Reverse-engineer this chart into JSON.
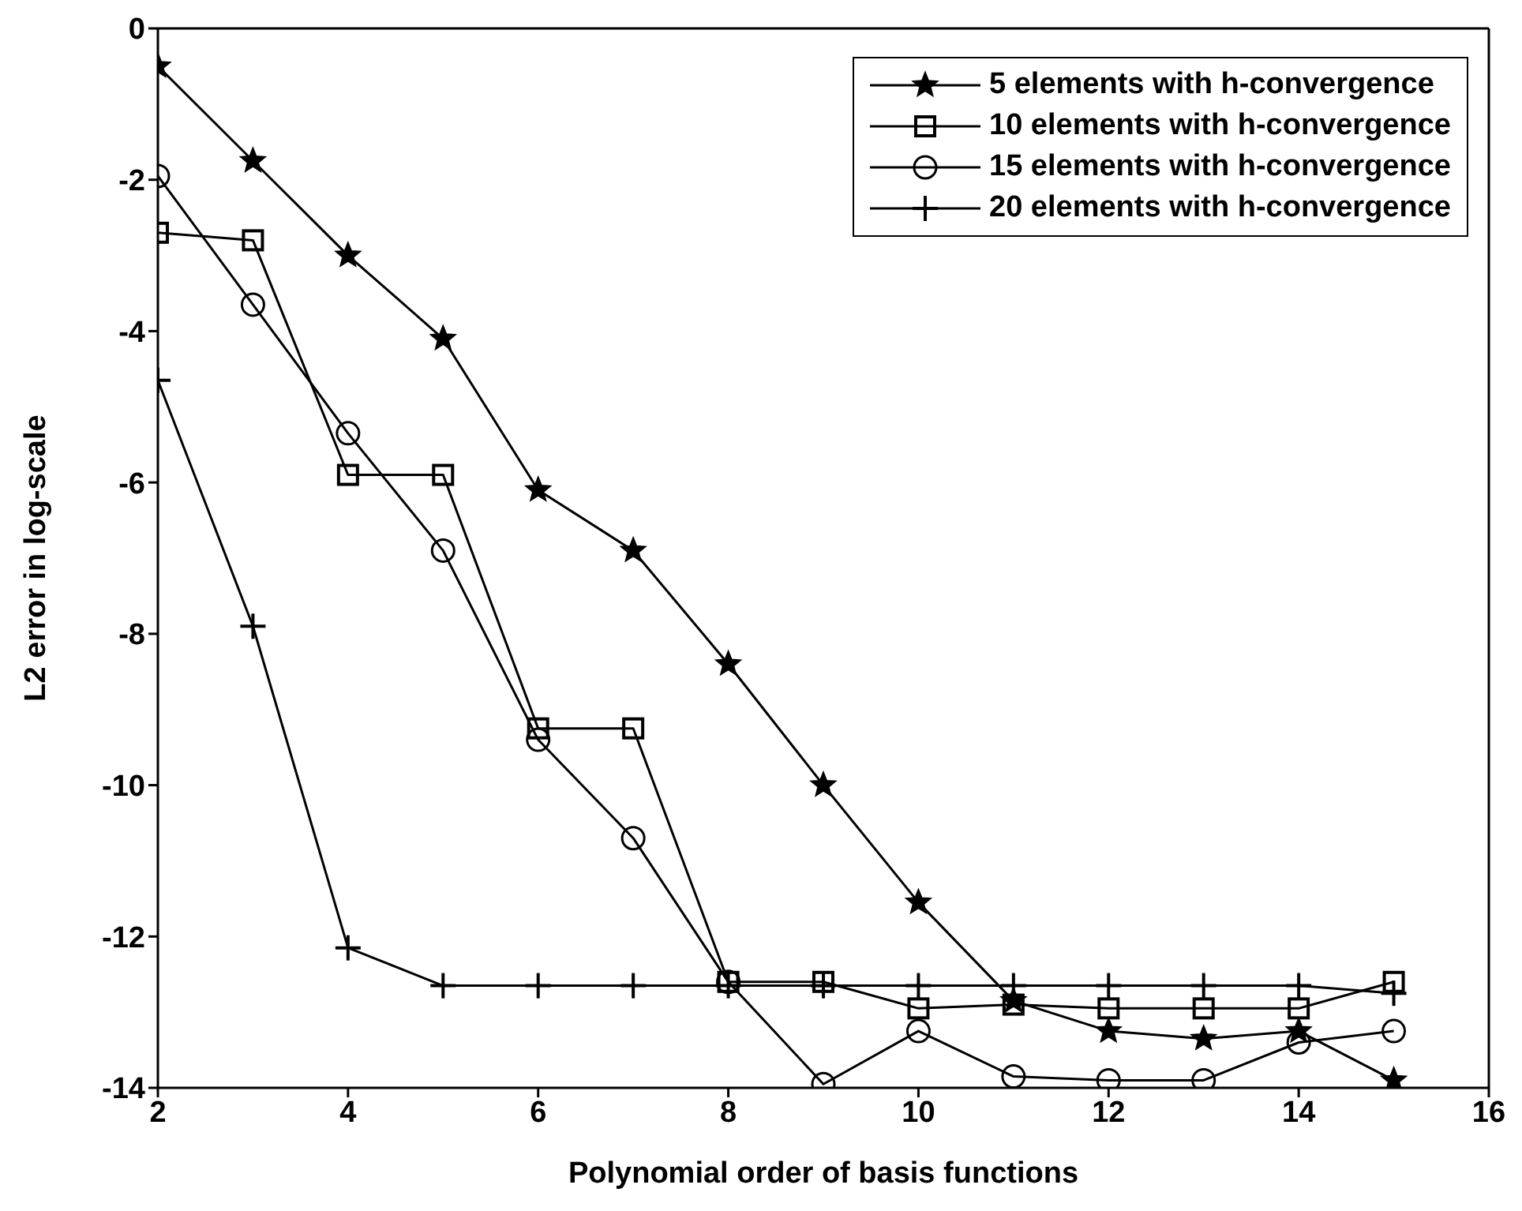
{
  "chart_data": {
    "type": "line",
    "xlabel": "Polynomial order of basis functions",
    "ylabel": "L2 error in log-scale",
    "x": [
      2,
      3,
      4,
      5,
      6,
      7,
      8,
      9,
      10,
      11,
      12,
      13,
      14,
      15
    ],
    "xlim": [
      2,
      16
    ],
    "xticks": [
      2,
      4,
      6,
      8,
      10,
      12,
      14,
      16
    ],
    "ylim": [
      -14,
      0
    ],
    "yticks": [
      -14,
      -12,
      -10,
      -8,
      -6,
      -4,
      -2,
      0
    ],
    "grid": false,
    "legend": "top right",
    "line_style": "solid",
    "series": [
      {
        "name": "5 elements with h-convergence",
        "color": "#000000",
        "marker": "star",
        "values": [
          -0.5,
          -1.75,
          -3.0,
          -4.1,
          -6.1,
          -6.9,
          -8.4,
          -10.0,
          -11.55,
          -12.85,
          -13.25,
          -13.35,
          -13.25,
          -13.9
        ]
      },
      {
        "name": "10 elements with h-convergence",
        "color": "#000000",
        "marker": "square",
        "values": [
          -2.7,
          -2.8,
          -5.9,
          -5.9,
          -9.25,
          -9.25,
          -12.6,
          -12.6,
          -12.95,
          -12.9,
          -12.95,
          -12.95,
          -12.95,
          -12.6
        ]
      },
      {
        "name": "15 elements with h-convergence",
        "color": "#000000",
        "marker": "circle",
        "values": [
          -1.95,
          -3.65,
          -5.35,
          -6.9,
          -9.4,
          -10.7,
          -12.6,
          -13.95,
          -13.25,
          -13.85,
          -13.9,
          -13.9,
          -13.4,
          -13.25
        ]
      },
      {
        "name": "20 elements with h-convergence",
        "color": "#000000",
        "marker": "cross",
        "values": [
          -4.65,
          -7.9,
          -12.15,
          -12.65,
          -12.65,
          -12.65,
          -12.65,
          -12.65,
          -12.65,
          -12.65,
          -12.65,
          -12.65,
          -12.65,
          -12.75
        ]
      }
    ]
  }
}
